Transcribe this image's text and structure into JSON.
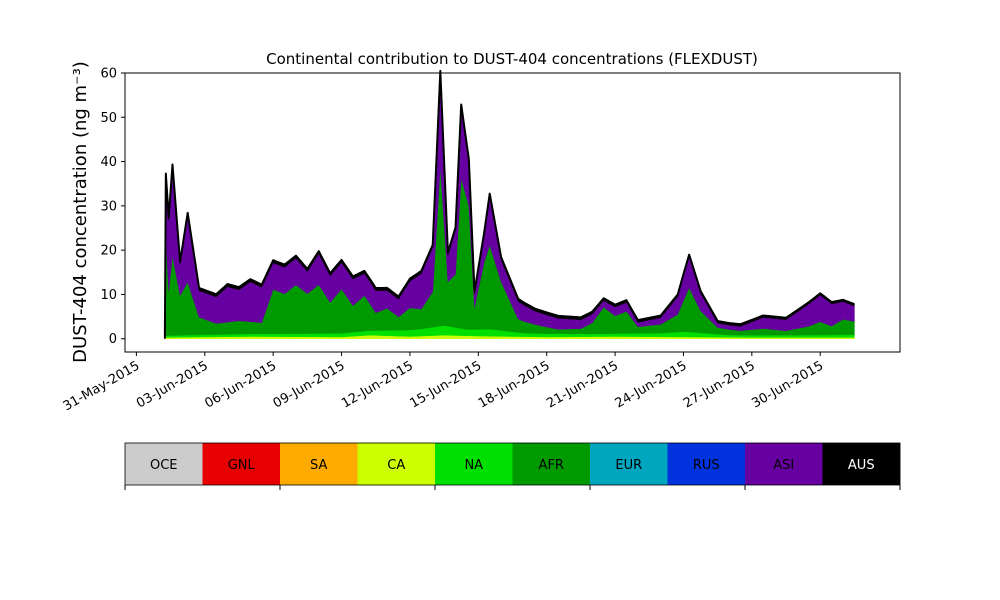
{
  "chart_data": {
    "type": "area",
    "title": "Continental contribution to DUST-404 concentrations (FLEXDUST)",
    "ylabel": "DUST-404 concentration (ng m⁻³)",
    "xlabel": "",
    "ylim": [
      -3,
      60
    ],
    "xlim": [
      "2015-05-30T12:00",
      "2015-07-03T12:00"
    ],
    "yticks": [
      0,
      10,
      20,
      30,
      40,
      50,
      60
    ],
    "xticks": [
      {
        "date": "2015-05-31",
        "label": "31-May-2015"
      },
      {
        "date": "2015-06-03",
        "label": "03-Jun-2015"
      },
      {
        "date": "2015-06-06",
        "label": "06-Jun-2015"
      },
      {
        "date": "2015-06-09",
        "label": "09-Jun-2015"
      },
      {
        "date": "2015-06-12",
        "label": "12-Jun-2015"
      },
      {
        "date": "2015-06-15",
        "label": "15-Jun-2015"
      },
      {
        "date": "2015-06-18",
        "label": "18-Jun-2015"
      },
      {
        "date": "2015-06-21",
        "label": "21-Jun-2015"
      },
      {
        "date": "2015-06-24",
        "label": "24-Jun-2015"
      },
      {
        "date": "2015-06-27",
        "label": "27-Jun-2015"
      },
      {
        "date": "2015-06-30",
        "label": "30-Jun-2015"
      }
    ],
    "grid": false,
    "legend": "colorbar-below",
    "colorbar": [
      {
        "label": "OCE",
        "color": "#cccccc"
      },
      {
        "label": "GNL",
        "color": "#e60000"
      },
      {
        "label": "SA",
        "color": "#ffaa00"
      },
      {
        "label": "CA",
        "color": "#ccff00"
      },
      {
        "label": "NA",
        "color": "#00e000"
      },
      {
        "label": "AFR",
        "color": "#009a00"
      },
      {
        "label": "EUR",
        "color": "#00a5bf"
      },
      {
        "label": "RUS",
        "color": "#0033dd"
      },
      {
        "label": "ASI",
        "color": "#6600a0"
      },
      {
        "label": "AUS",
        "color": "#000000"
      }
    ],
    "total_line_color": "#000000",
    "series": [
      {
        "name": "CA",
        "color": "#ccff00",
        "points": [
          [
            "2015-06-01T06:00",
            0.3
          ],
          [
            "2015-06-05T00:00",
            0.5
          ],
          [
            "2015-06-09T00:00",
            0.4
          ],
          [
            "2015-06-10T06:00",
            0.8
          ],
          [
            "2015-06-12T00:00",
            0.5
          ],
          [
            "2015-06-13T12:00",
            0.8
          ],
          [
            "2015-06-15T00:00",
            0.6
          ],
          [
            "2015-06-18T00:00",
            0.4
          ],
          [
            "2015-06-21T00:00",
            0.5
          ],
          [
            "2015-06-24T00:00",
            0.4
          ],
          [
            "2015-06-27T00:00",
            0.3
          ],
          [
            "2015-07-01T12:00",
            0.3
          ]
        ]
      },
      {
        "name": "NA",
        "color": "#00e000",
        "points": [
          [
            "2015-06-01T06:00",
            0.4
          ],
          [
            "2015-06-05T00:00",
            0.6
          ],
          [
            "2015-06-09T00:00",
            0.8
          ],
          [
            "2015-06-11T00:00",
            1.2
          ],
          [
            "2015-06-12T12:00",
            1.6
          ],
          [
            "2015-06-13T12:00",
            2.2
          ],
          [
            "2015-06-14T12:00",
            1.4
          ],
          [
            "2015-06-15T12:00",
            1.6
          ],
          [
            "2015-06-17T00:00",
            0.8
          ],
          [
            "2015-06-20T00:00",
            0.6
          ],
          [
            "2015-06-23T00:00",
            0.8
          ],
          [
            "2015-06-24T00:00",
            1.2
          ],
          [
            "2015-06-26T00:00",
            0.5
          ],
          [
            "2015-06-29T00:00",
            0.5
          ],
          [
            "2015-07-01T12:00",
            0.6
          ]
        ]
      },
      {
        "name": "AFR",
        "color": "#009a00",
        "points": [
          [
            "2015-06-01T06:00",
            0.5
          ],
          [
            "2015-06-01T07:00",
            23.0
          ],
          [
            "2015-06-01T10:00",
            10.0
          ],
          [
            "2015-06-01T14:00",
            18.0
          ],
          [
            "2015-06-01T22:00",
            9.0
          ],
          [
            "2015-06-02T06:00",
            12.0
          ],
          [
            "2015-06-02T18:00",
            4.0
          ],
          [
            "2015-06-03T12:00",
            2.5
          ],
          [
            "2015-06-04T12:00",
            3.0
          ],
          [
            "2015-06-05T12:00",
            2.5
          ],
          [
            "2015-06-06T00:00",
            10.0
          ],
          [
            "2015-06-06T12:00",
            9.0
          ],
          [
            "2015-06-07T00:00",
            11.0
          ],
          [
            "2015-06-07T12:00",
            9.0
          ],
          [
            "2015-06-08T00:00",
            11.0
          ],
          [
            "2015-06-08T12:00",
            7.0
          ],
          [
            "2015-06-09T00:00",
            10.0
          ],
          [
            "2015-06-09T12:00",
            6.0
          ],
          [
            "2015-06-10T00:00",
            8.0
          ],
          [
            "2015-06-10T12:00",
            4.0
          ],
          [
            "2015-06-11T00:00",
            5.0
          ],
          [
            "2015-06-11T12:00",
            3.0
          ],
          [
            "2015-06-12T00:00",
            5.0
          ],
          [
            "2015-06-12T12:00",
            4.5
          ],
          [
            "2015-06-13T00:00",
            8.0
          ],
          [
            "2015-06-13T08:00",
            36.0
          ],
          [
            "2015-06-13T16:00",
            10.0
          ],
          [
            "2015-06-14T00:00",
            12.0
          ],
          [
            "2015-06-14T06:00",
            34.0
          ],
          [
            "2015-06-14T14:00",
            28.0
          ],
          [
            "2015-06-14T20:00",
            5.0
          ],
          [
            "2015-06-15T06:00",
            15.0
          ],
          [
            "2015-06-15T12:00",
            19.0
          ],
          [
            "2015-06-16T00:00",
            11.0
          ],
          [
            "2015-06-16T18:00",
            3.0
          ],
          [
            "2015-06-17T12:00",
            2.0
          ],
          [
            "2015-06-18T12:00",
            1.0
          ],
          [
            "2015-06-19T12:00",
            1.2
          ],
          [
            "2015-06-20T00:00",
            2.5
          ],
          [
            "2015-06-20T12:00",
            6.0
          ],
          [
            "2015-06-21T00:00",
            4.0
          ],
          [
            "2015-06-21T12:00",
            5.0
          ],
          [
            "2015-06-22T00:00",
            1.5
          ],
          [
            "2015-06-23T00:00",
            2.0
          ],
          [
            "2015-06-23T18:00",
            4.0
          ],
          [
            "2015-06-24T06:00",
            10.0
          ],
          [
            "2015-06-24T18:00",
            5.0
          ],
          [
            "2015-06-25T12:00",
            1.5
          ],
          [
            "2015-06-26T12:00",
            1.0
          ],
          [
            "2015-06-27T12:00",
            1.5
          ],
          [
            "2015-06-28T12:00",
            1.0
          ],
          [
            "2015-06-29T12:00",
            2.0
          ],
          [
            "2015-06-30T00:00",
            3.0
          ],
          [
            "2015-06-30T12:00",
            2.0
          ],
          [
            "2015-07-01T00:00",
            3.5
          ],
          [
            "2015-07-01T12:00",
            3.0
          ]
        ]
      },
      {
        "name": "ASI",
        "color": "#6600a0",
        "points": [
          [
            "2015-06-01T06:00",
            0.0
          ],
          [
            "2015-06-01T07:00",
            13.0
          ],
          [
            "2015-06-01T14:00",
            20.0
          ],
          [
            "2015-06-01T22:00",
            7.0
          ],
          [
            "2015-06-02T06:00",
            15.0
          ],
          [
            "2015-06-02T18:00",
            6.0
          ],
          [
            "2015-06-03T12:00",
            6.0
          ],
          [
            "2015-06-04T00:00",
            8.0
          ],
          [
            "2015-06-04T12:00",
            7.0
          ],
          [
            "2015-06-05T00:00",
            9.0
          ],
          [
            "2015-06-05T12:00",
            8.0
          ],
          [
            "2015-06-06T00:00",
            6.0
          ],
          [
            "2015-06-06T12:00",
            6.0
          ],
          [
            "2015-06-07T00:00",
            6.0
          ],
          [
            "2015-06-07T12:00",
            5.0
          ],
          [
            "2015-06-08T00:00",
            7.0
          ],
          [
            "2015-06-08T12:00",
            6.0
          ],
          [
            "2015-06-09T00:00",
            6.0
          ],
          [
            "2015-06-09T12:00",
            6.0
          ],
          [
            "2015-06-10T00:00",
            5.0
          ],
          [
            "2015-06-10T12:00",
            5.0
          ],
          [
            "2015-06-11T00:00",
            4.0
          ],
          [
            "2015-06-11T12:00",
            4.0
          ],
          [
            "2015-06-12T00:00",
            6.0
          ],
          [
            "2015-06-12T12:00",
            8.0
          ],
          [
            "2015-06-13T00:00",
            10.0
          ],
          [
            "2015-06-13T08:00",
            21.0
          ],
          [
            "2015-06-13T16:00",
            6.0
          ],
          [
            "2015-06-14T00:00",
            10.0
          ],
          [
            "2015-06-14T06:00",
            16.0
          ],
          [
            "2015-06-14T14:00",
            10.0
          ],
          [
            "2015-06-14T20:00",
            3.0
          ],
          [
            "2015-06-15T06:00",
            6.0
          ],
          [
            "2015-06-15T12:00",
            11.0
          ],
          [
            "2015-06-16T00:00",
            5.0
          ],
          [
            "2015-06-16T18:00",
            4.0
          ],
          [
            "2015-06-17T12:00",
            3.0
          ],
          [
            "2015-06-18T12:00",
            2.5
          ],
          [
            "2015-06-19T12:00",
            2.0
          ],
          [
            "2015-06-20T00:00",
            2.0
          ],
          [
            "2015-06-20T12:00",
            1.5
          ],
          [
            "2015-06-21T00:00",
            2.0
          ],
          [
            "2015-06-21T12:00",
            2.0
          ],
          [
            "2015-06-22T00:00",
            1.0
          ],
          [
            "2015-06-23T00:00",
            1.5
          ],
          [
            "2015-06-23T18:00",
            4.0
          ],
          [
            "2015-06-24T06:00",
            7.0
          ],
          [
            "2015-06-24T18:00",
            4.0
          ],
          [
            "2015-06-25T12:00",
            1.0
          ],
          [
            "2015-06-26T12:00",
            1.0
          ],
          [
            "2015-06-27T12:00",
            2.5
          ],
          [
            "2015-06-28T12:00",
            2.5
          ],
          [
            "2015-06-29T12:00",
            5.0
          ],
          [
            "2015-06-30T00:00",
            6.0
          ],
          [
            "2015-06-30T12:00",
            5.0
          ],
          [
            "2015-07-01T00:00",
            4.0
          ],
          [
            "2015-07-01T12:00",
            3.5
          ]
        ]
      },
      {
        "name": "AUS",
        "color": "#000000",
        "points": [
          [
            "2015-06-01T06:00",
            0.0
          ],
          [
            "2015-06-01T07:00",
            0.6
          ],
          [
            "2015-06-13T08:00",
            0.6
          ],
          [
            "2015-06-14T06:00",
            0.6
          ],
          [
            "2015-07-01T12:00",
            0.4
          ]
        ]
      }
    ]
  }
}
